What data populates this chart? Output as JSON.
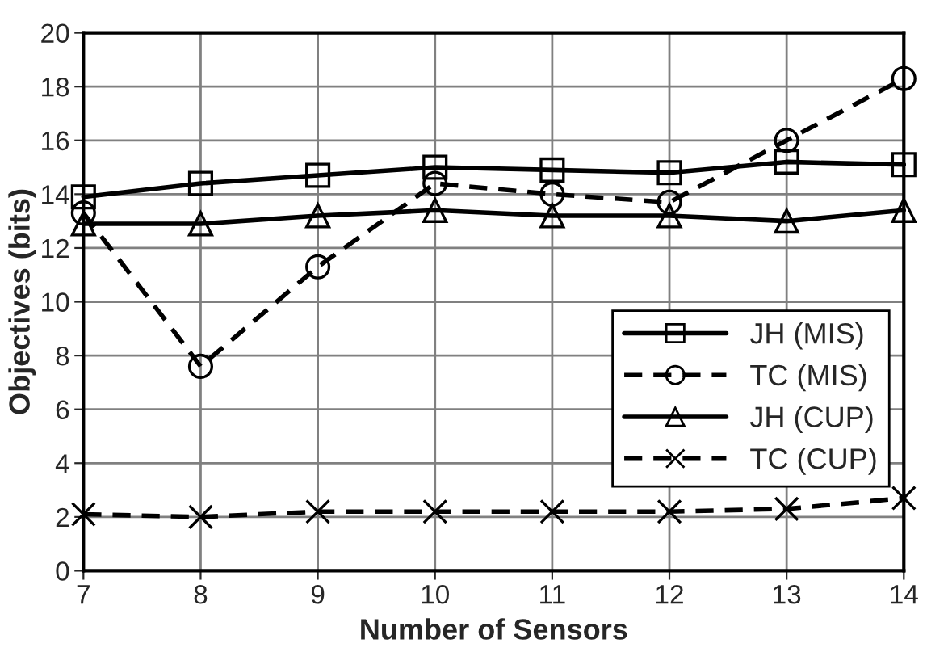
{
  "chart_data": {
    "type": "line",
    "xlabel": "Number of Sensors",
    "ylabel": "Objectives (bits)",
    "x": [
      7,
      8,
      9,
      10,
      11,
      12,
      13,
      14
    ],
    "series": [
      {
        "name": "JH (MIS)",
        "color": "#000000",
        "marker": "square",
        "line_style": "solid",
        "values": [
          13.9,
          14.4,
          14.7,
          15.0,
          14.9,
          14.8,
          15.2,
          15.1
        ]
      },
      {
        "name": "TC (MIS)",
        "color": "#000000",
        "marker": "circle",
        "line_style": "dashed",
        "values": [
          13.3,
          7.6,
          11.3,
          14.4,
          14.0,
          13.7,
          16.0,
          18.3
        ]
      },
      {
        "name": "JH (CUP)",
        "color": "#000000",
        "marker": "triangle",
        "line_style": "solid",
        "values": [
          12.9,
          12.9,
          13.2,
          13.4,
          13.2,
          13.2,
          13.0,
          13.4
        ]
      },
      {
        "name": "TC (CUP)",
        "color": "#000000",
        "marker": "cross",
        "line_style": "dashed",
        "values": [
          2.1,
          2.0,
          2.2,
          2.2,
          2.2,
          2.2,
          2.3,
          2.7
        ]
      }
    ],
    "xlim": [
      7,
      14
    ],
    "xticks": [
      7,
      8,
      9,
      10,
      11,
      12,
      13,
      14
    ],
    "ylim": [
      0,
      20
    ],
    "yticks": [
      0,
      2,
      4,
      6,
      8,
      10,
      12,
      14,
      16,
      18,
      20
    ],
    "grid": true,
    "legend": "right"
  }
}
